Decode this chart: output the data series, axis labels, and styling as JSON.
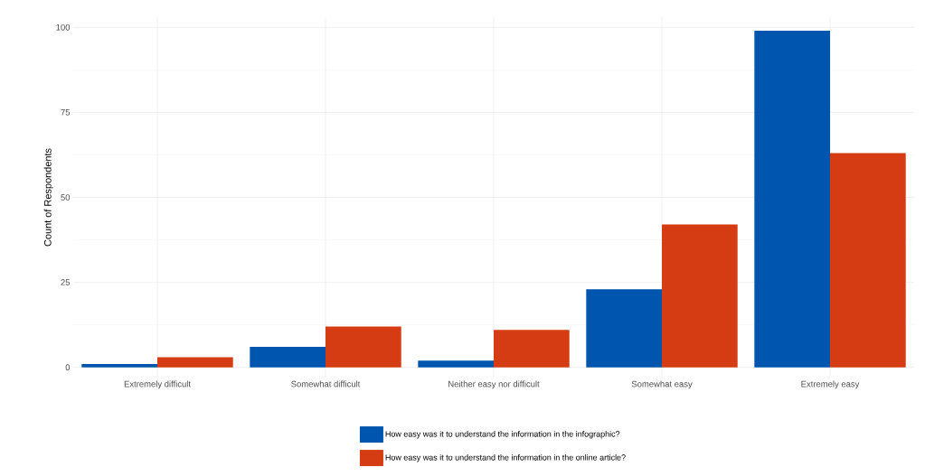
{
  "chart_data": {
    "type": "bar",
    "ylabel": "Count of Respondents",
    "categories": [
      "Extremely difficult",
      "Somewhat difficult",
      "Neither easy nor difficult",
      "Somewhat easy",
      "Extremely easy"
    ],
    "series": [
      {
        "name": "How easy was it to understand the information in the infographic?",
        "color": "#0056ae",
        "values": [
          1,
          6,
          2,
          23,
          99
        ]
      },
      {
        "name": "How easy was it to understand the information in the online article?",
        "color": "#d63c14",
        "values": [
          3,
          12,
          11,
          42,
          63
        ]
      }
    ],
    "ylim": [
      -3,
      103
    ],
    "yticks": [
      0,
      25,
      50,
      75,
      100
    ],
    "grid": true,
    "legend": "bottom"
  }
}
